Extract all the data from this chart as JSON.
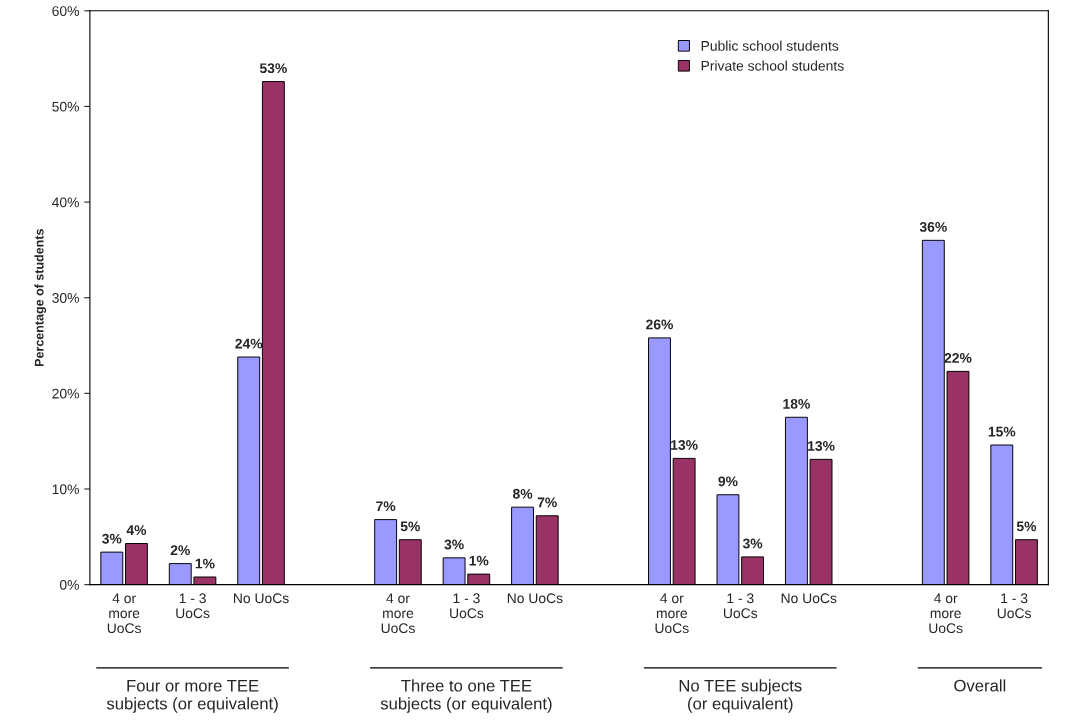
{
  "chart_data": {
    "type": "bar",
    "ylabel": "Percentage of students",
    "categories": [
      "4 or\nmore\nUoCs",
      "1 - 3\nUoCs",
      "No UoCs",
      null,
      "4 or\nmore\nUoCs",
      "1 - 3\nUoCs",
      "No UoCs",
      null,
      "4 or\nmore\nUoCs",
      "1 - 3\nUoCs",
      "No UoCs",
      null,
      "4 or\nmore\nUoCs",
      "1 - 3\nUoCs"
    ],
    "series": [
      {
        "name": "Public school students",
        "color": "#9999ff",
        "values": [
          3.4,
          2.2,
          23.8,
          null,
          6.8,
          2.8,
          8.1,
          null,
          25.8,
          9.4,
          17.5,
          null,
          36.0,
          14.6
        ],
        "value_labels": [
          "3%",
          "2%",
          "24%",
          null,
          "7%",
          "3%",
          "8%",
          null,
          "26%",
          "9%",
          "18%",
          null,
          "36%",
          "15%"
        ]
      },
      {
        "name": "Private school students",
        "color": "#993366",
        "values": [
          4.3,
          0.8,
          52.6,
          null,
          4.7,
          1.1,
          7.2,
          null,
          13.2,
          2.9,
          13.1,
          null,
          22.3,
          4.7
        ],
        "value_labels": [
          "4%",
          "1%",
          "53%",
          null,
          "5%",
          "1%",
          "7%",
          null,
          "13%",
          "3%",
          "13%",
          null,
          "22%",
          "5%"
        ]
      }
    ],
    "ylim": [
      0,
      60
    ],
    "yticks": [
      {
        "value": 0,
        "label": "0%"
      },
      {
        "value": 10,
        "label": "10%"
      },
      {
        "value": 20,
        "label": "20%"
      },
      {
        "value": 30,
        "label": "30%"
      },
      {
        "value": 40,
        "label": "40%"
      },
      {
        "value": 50,
        "label": "50%"
      },
      {
        "value": 60,
        "label": "60%"
      }
    ],
    "annotations": [
      "Four or more TEE\nsubjects (or equivalent)",
      "Three to one TEE\nsubjects (or equivalent)",
      "No TEE subjects\n(or equivalent)",
      "Overall"
    ],
    "legend": "top right",
    "grid": false
  }
}
